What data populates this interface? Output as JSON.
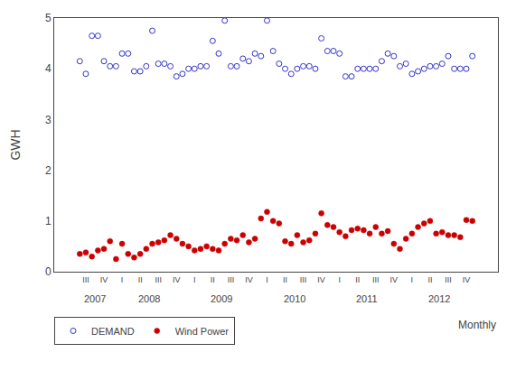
{
  "chart_data": {
    "type": "scatter",
    "y_label": "GWH",
    "categories": [
      null,
      "III",
      null,
      null,
      "IV",
      null,
      null,
      "I",
      null,
      null,
      "II",
      null,
      null,
      "III",
      null,
      null,
      "IV",
      null,
      null,
      "I",
      null,
      null,
      "II",
      null,
      null,
      "III",
      null,
      null,
      "IV",
      null,
      null,
      "I",
      null,
      null,
      "II",
      null,
      null,
      "III",
      null,
      null,
      "IV",
      null,
      null,
      "I",
      null,
      null,
      "II",
      null,
      null,
      "III",
      null,
      null,
      "IV",
      null,
      null,
      "I",
      null,
      null,
      "II",
      null,
      null,
      "III",
      null,
      null,
      "IV",
      null
    ],
    "series": [
      {
        "name": "DEMAND",
        "color": "#3333cc",
        "marker": "circle-open",
        "values": [
          4.15,
          3.9,
          4.65,
          4.65,
          4.15,
          4.05,
          4.05,
          4.3,
          4.3,
          3.95,
          3.95,
          4.05,
          4.75,
          4.1,
          4.1,
          4.05,
          3.85,
          3.9,
          4.0,
          4.0,
          4.05,
          4.05,
          4.55,
          4.3,
          4.95,
          4.05,
          4.05,
          4.2,
          4.15,
          4.3,
          4.25,
          4.95,
          4.35,
          4.1,
          4.0,
          3.9,
          4.0,
          4.05,
          4.05,
          4.0,
          4.6,
          4.35,
          4.35,
          4.3,
          3.85,
          3.85,
          4.0,
          4.0,
          4.0,
          4.0,
          4.15,
          4.3,
          4.25,
          4.05,
          4.1,
          3.9,
          3.95,
          4.0,
          4.05,
          4.05,
          4.1,
          4.25,
          4.0,
          4.0,
          4.0,
          4.25
        ]
      },
      {
        "name": "Wind Power",
        "color": "#cc0000",
        "marker": "circle",
        "values": [
          0.35,
          0.38,
          0.3,
          0.42,
          0.45,
          0.6,
          0.25,
          0.55,
          0.35,
          0.28,
          0.35,
          0.45,
          0.55,
          0.58,
          0.62,
          0.72,
          0.65,
          0.55,
          0.5,
          0.42,
          0.45,
          0.5,
          0.45,
          0.42,
          0.55,
          0.65,
          0.62,
          0.72,
          0.58,
          0.65,
          1.05,
          1.18,
          1.0,
          0.95,
          0.6,
          0.55,
          0.72,
          0.58,
          0.62,
          0.75,
          1.15,
          0.92,
          0.88,
          0.78,
          0.7,
          0.82,
          0.85,
          0.82,
          0.75,
          0.88,
          0.75,
          0.8,
          0.55,
          0.45,
          0.65,
          0.75,
          0.88,
          0.95,
          1.0,
          0.75,
          0.78,
          0.72,
          0.72,
          0.68,
          1.02,
          1.0
        ]
      }
    ],
    "ylim": [
      0,
      5
    ],
    "yticks": [
      0,
      1,
      2,
      3,
      4,
      5
    ],
    "grid": false,
    "legend": "bottom left",
    "annotations": [
      {
        "text": "2007",
        "x": 2.5
      },
      {
        "text": "2008",
        "x": 11.5
      },
      {
        "text": "2009",
        "x": 23.5
      },
      {
        "text": "2010",
        "x": 35.5
      },
      {
        "text": "2011",
        "x": 47.5
      },
      {
        "text": "2012",
        "x": 59.5
      },
      {
        "text": "Monthly"
      }
    ]
  }
}
